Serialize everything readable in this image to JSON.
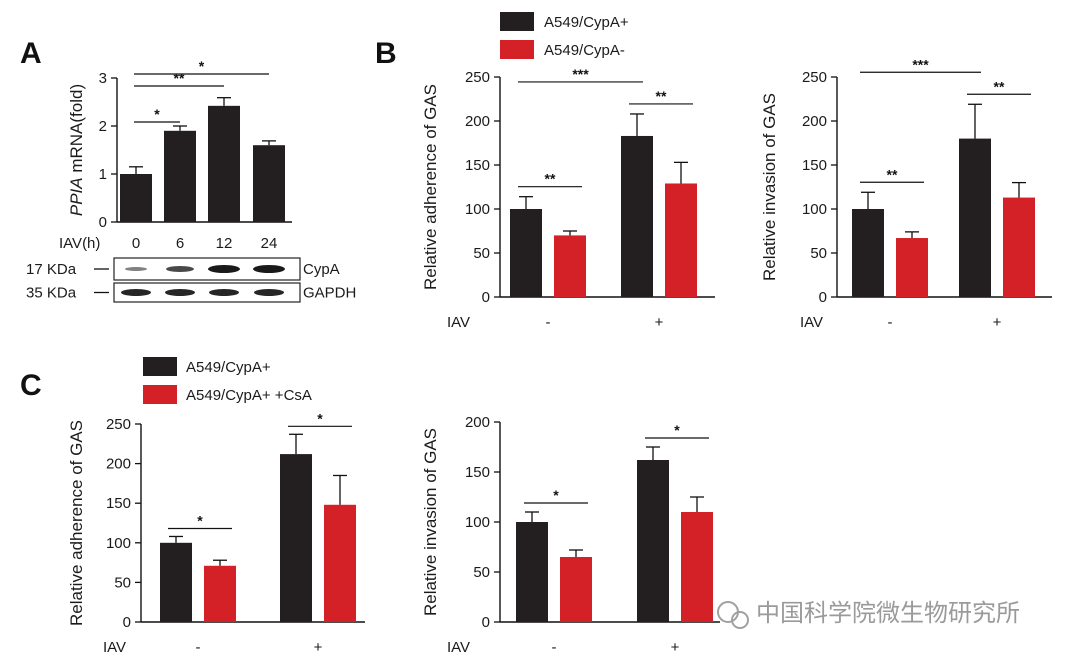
{
  "colors": {
    "dark": "#231f20",
    "red": "#d42127"
  },
  "watermark": "中国科学院微生物研究所",
  "chart_data": [
    {
      "id": "A",
      "panel_label": "A",
      "type": "bar",
      "ylabel_italic": "PPIA",
      "ylabel_rest": " mRNA(fold)",
      "xlabel": "IAV(h)",
      "categories": [
        "0",
        "6",
        "12",
        "24"
      ],
      "values": [
        1.0,
        1.9,
        2.42,
        1.6
      ],
      "errors": [
        0.15,
        0.1,
        0.17,
        0.09
      ],
      "ylim": [
        0,
        3
      ],
      "yticks": [
        0,
        1,
        2,
        3
      ],
      "significance": [
        {
          "from": 0,
          "to": 1,
          "label": "*"
        },
        {
          "from": 0,
          "to": 2,
          "label": "**"
        },
        {
          "from": 0,
          "to": 3,
          "label": "*"
        }
      ],
      "blot": [
        {
          "left_label": "17 KDa",
          "right_label": "CypA"
        },
        {
          "left_label": "35 KDa",
          "right_label": "GAPDH"
        }
      ]
    },
    {
      "id": "B1",
      "panel_label": "B",
      "type": "bar",
      "ylabel": "Relative adherence of GAS",
      "xlabel": "IAV",
      "groups": [
        "-",
        "+"
      ],
      "legend": [
        "A549/CypA+",
        "A549/CypA-"
      ],
      "series": [
        {
          "name": "A549/CypA+",
          "values": [
            100,
            183
          ],
          "errors": [
            14,
            25
          ]
        },
        {
          "name": "A549/CypA-",
          "values": [
            70,
            129
          ],
          "errors": [
            5,
            24
          ]
        }
      ],
      "ylim": [
        0,
        250
      ],
      "yticks": [
        0,
        50,
        100,
        150,
        200,
        250
      ],
      "significance": [
        {
          "within_group": 0,
          "label": "**"
        },
        {
          "within_group": 1,
          "label": "**"
        },
        {
          "across": "dark",
          "label": "***"
        }
      ]
    },
    {
      "id": "B2",
      "type": "bar",
      "ylabel": "Relative invasion of GAS",
      "xlabel": "IAV",
      "groups": [
        "-",
        "+"
      ],
      "series": [
        {
          "name": "A549/CypA+",
          "values": [
            100,
            180
          ],
          "errors": [
            19,
            39
          ]
        },
        {
          "name": "A549/CypA-",
          "values": [
            67,
            113
          ],
          "errors": [
            7,
            17
          ]
        }
      ],
      "ylim": [
        0,
        250
      ],
      "yticks": [
        0,
        50,
        100,
        150,
        200,
        250
      ],
      "significance": [
        {
          "within_group": 0,
          "label": "**"
        },
        {
          "within_group": 1,
          "label": "**"
        },
        {
          "across": "dark",
          "label": "***"
        }
      ]
    },
    {
      "id": "C1",
      "panel_label": "C",
      "type": "bar",
      "ylabel": "Relative adherence of GAS",
      "xlabel": "IAV",
      "groups": [
        "-",
        "+"
      ],
      "legend": [
        "A549/CypA+",
        "A549/CypA+ +CsA"
      ],
      "series": [
        {
          "name": "A549/CypA+",
          "values": [
            100,
            212
          ],
          "errors": [
            8,
            25
          ]
        },
        {
          "name": "A549/CypA+ +CsA",
          "values": [
            71,
            148
          ],
          "errors": [
            7,
            37
          ]
        }
      ],
      "ylim": [
        0,
        250
      ],
      "yticks": [
        0,
        50,
        100,
        150,
        200,
        250
      ],
      "significance": [
        {
          "within_group": 0,
          "label": "*"
        },
        {
          "within_group": 1,
          "label": "*"
        }
      ]
    },
    {
      "id": "C2",
      "type": "bar",
      "ylabel": "Relative invasion of GAS",
      "xlabel": "IAV",
      "groups": [
        "-",
        "+"
      ],
      "series": [
        {
          "name": "A549/CypA+",
          "values": [
            100,
            162
          ],
          "errors": [
            10,
            13
          ]
        },
        {
          "name": "A549/CypA+ +CsA",
          "values": [
            65,
            110
          ],
          "errors": [
            7,
            15
          ]
        }
      ],
      "ylim": [
        0,
        200
      ],
      "yticks": [
        0,
        50,
        100,
        150,
        200
      ],
      "significance": [
        {
          "within_group": 0,
          "label": "*"
        },
        {
          "within_group": 1,
          "label": "*"
        }
      ]
    }
  ]
}
